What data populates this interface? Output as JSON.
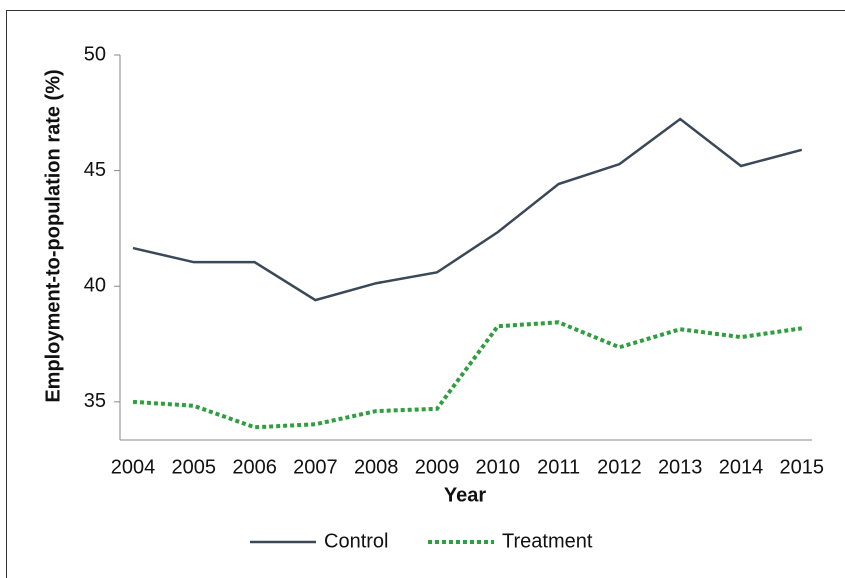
{
  "chart_data": {
    "type": "line",
    "x_label": "Year",
    "y_label": "Employment-to-population rate (%)",
    "categories": [
      "2004",
      "2005",
      "2006",
      "2007",
      "2008",
      "2009",
      "2010",
      "2011",
      "2012",
      "2013",
      "2014",
      "2015"
    ],
    "series": [
      {
        "name": "Control",
        "color": "#3a4858",
        "dash": "solid",
        "values": [
          41.65,
          41.04,
          41.04,
          39.4,
          40.13,
          40.6,
          42.34,
          44.42,
          45.28,
          47.23,
          45.2,
          45.9
        ]
      },
      {
        "name": "Treatment",
        "color": "#2e9e3e",
        "dash": "dotted",
        "values": [
          35.0,
          34.83,
          33.9,
          34.03,
          34.6,
          34.7,
          38.27,
          38.44,
          37.36,
          38.14,
          37.8,
          38.18
        ]
      }
    ],
    "ylim": [
      33.35,
      50
    ],
    "yticks": [
      35,
      40,
      45,
      50
    ],
    "grid": false,
    "legend": "bottom"
  }
}
